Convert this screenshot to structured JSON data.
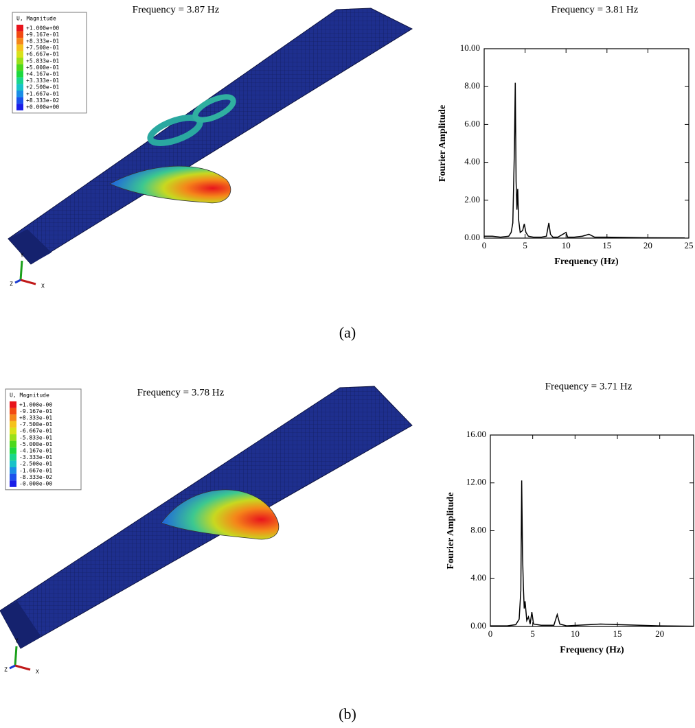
{
  "chart_data": [
    {
      "type": "line",
      "title": "Frequency = 3.81 Hz",
      "xlabel": "Frequency (Hz)",
      "ylabel": "Fourier Amplitude",
      "x": [
        0,
        1,
        2,
        3,
        3.3,
        3.5,
        3.7,
        3.8,
        3.9,
        4.0,
        4.1,
        4.2,
        4.4,
        4.7,
        4.9,
        5.1,
        5.4,
        6,
        7,
        7.6,
        7.9,
        8.1,
        8.4,
        9,
        10,
        10.2,
        11,
        12,
        12.8,
        13.5,
        15,
        20,
        24.5
      ],
      "values": [
        0.1,
        0.1,
        0.05,
        0.1,
        0.3,
        0.8,
        4.8,
        8.2,
        3.0,
        1.5,
        2.6,
        1.0,
        0.3,
        0.4,
        0.75,
        0.3,
        0.1,
        0.05,
        0.05,
        0.1,
        0.8,
        0.2,
        0.05,
        0.05,
        0.3,
        0.05,
        0.05,
        0.1,
        0.2,
        0.05,
        0.05,
        0.02,
        0.01
      ],
      "color": "#000000",
      "xlim": [
        0,
        25
      ],
      "xticks": [
        0,
        5,
        10,
        15,
        20,
        25
      ],
      "ylim": [
        0,
        10
      ],
      "yticks": [
        {
          "value": 0,
          "label": "0.00"
        },
        {
          "value": 2,
          "label": "2.00"
        },
        {
          "value": 4,
          "label": "4.00"
        },
        {
          "value": 6,
          "label": "6.00"
        },
        {
          "value": 8,
          "label": "8.00"
        },
        {
          "value": 10,
          "label": "10.00"
        }
      ]
    },
    {
      "type": "line",
      "title": "Frequency = 3.71 Hz",
      "xlabel": "Frequency (Hz)",
      "ylabel": "Fourier Amplitude",
      "x": [
        0,
        2,
        3,
        3.4,
        3.6,
        3.7,
        3.8,
        3.9,
        4.0,
        4.1,
        4.3,
        4.5,
        4.7,
        4.9,
        5.1,
        6,
        7.5,
        7.9,
        8.2,
        9,
        13,
        20,
        24
      ],
      "values": [
        0.05,
        0.05,
        0.15,
        0.6,
        3,
        12.2,
        6,
        3.3,
        1.5,
        2.1,
        0.5,
        0.8,
        0.2,
        1.2,
        0.2,
        0.1,
        0.1,
        1.0,
        0.2,
        0.05,
        0.2,
        0.05,
        0.02
      ],
      "color": "#000000",
      "xlim": [
        0,
        24
      ],
      "xticks": [
        0,
        5,
        10,
        15,
        20
      ],
      "ylim": [
        0,
        16
      ],
      "yticks": [
        {
          "value": 0,
          "label": "0.00"
        },
        {
          "value": 4,
          "label": "4.00"
        },
        {
          "value": 8,
          "label": "8.00"
        },
        {
          "value": 12,
          "label": "12.00"
        },
        {
          "value": 16,
          "label": "16.00"
        }
      ]
    }
  ],
  "legend_colors": [
    "#e8141c",
    "#f24a12",
    "#f5861a",
    "#f5c21c",
    "#d8e21a",
    "#9ae01a",
    "#4cd81c",
    "#1cd83e",
    "#18d68c",
    "#18c2c8",
    "#1a8ee6",
    "#1a52ec",
    "#1a1ee8"
  ],
  "fe_panels": [
    {
      "title": "Frequency = 3.87 Hz",
      "legend_title": "U, Magnitude",
      "legend_labels": [
        "+1.000e+00",
        "+9.167e-01",
        "+8.333e-01",
        "+7.500e-01",
        "+6.667e-01",
        "+5.833e-01",
        "+5.000e-01",
        "+4.167e-01",
        "+3.333e-01",
        "+2.500e-01",
        "+1.667e-01",
        "+8.333e-02",
        "+0.000e+00"
      ],
      "triad": {
        "x": "X",
        "y": "Y",
        "z": "Z"
      }
    },
    {
      "title": "Frequency = 3.78 Hz",
      "legend_title": "U, Magnitude",
      "legend_labels": [
        "+1.000e-00",
        "-9.167e-01",
        "+8.333e-01",
        "-7.500e-01",
        "-6.667e-01",
        "-5.833e-01",
        "-5.000e-01",
        "-4.167e-01",
        "-3.333e-01",
        "-2.500e-01",
        "-1.667e-01",
        "-8.333e-02",
        "-0.000e-00"
      ],
      "triad": {
        "x": "X",
        "y": "Y",
        "z": "Z"
      }
    }
  ],
  "captions": [
    "(a)",
    "(b)"
  ]
}
